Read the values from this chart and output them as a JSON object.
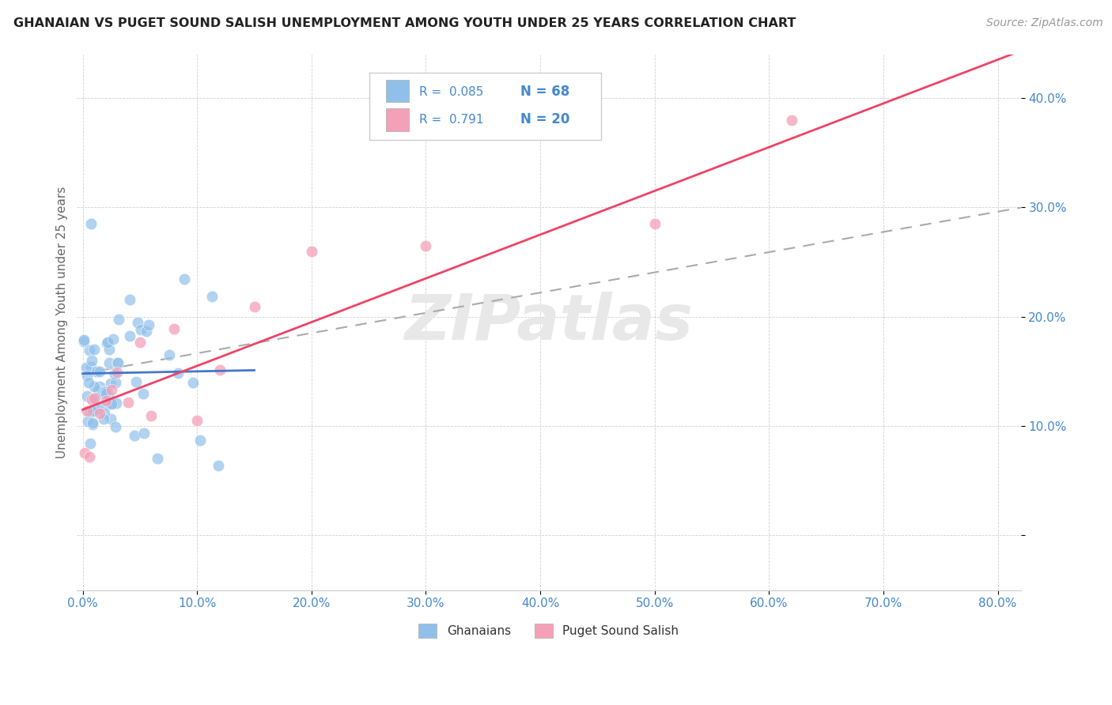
{
  "title": "GHANAIAN VS PUGET SOUND SALISH UNEMPLOYMENT AMONG YOUTH UNDER 25 YEARS CORRELATION CHART",
  "source": "Source: ZipAtlas.com",
  "xlim": [
    -0.005,
    0.82
  ],
  "ylim": [
    -0.05,
    0.44
  ],
  "xticks": [
    0.0,
    0.1,
    0.2,
    0.3,
    0.4,
    0.5,
    0.6,
    0.7,
    0.8
  ],
  "xticklabels": [
    "0.0%",
    "10.0%",
    "20.0%",
    "30.0%",
    "40.0%",
    "50.0%",
    "60.0%",
    "70.0%",
    "80.0%"
  ],
  "yticks": [
    0.0,
    0.1,
    0.2,
    0.3,
    0.4
  ],
  "yticklabels": [
    "",
    "10.0%",
    "20.0%",
    "30.0%",
    "40.0%"
  ],
  "ghanaian_R": 0.085,
  "ghanaian_N": 68,
  "salish_R": 0.791,
  "salish_N": 20,
  "blue_color": "#90c0ea",
  "pink_color": "#f4a0b8",
  "blue_line_color": "#4477cc",
  "pink_line_color": "#ee4466",
  "dash_line_color": "#aaaaaa",
  "tick_color": "#4488cc",
  "watermark": "ZIPatlas",
  "ylabel": "Unemployment Among Youth under 25 years",
  "blue_intercept": 0.148,
  "blue_slope": 0.02,
  "pink_intercept": 0.115,
  "pink_slope": 0.4,
  "dash_intercept": 0.148,
  "dash_slope": 0.185
}
